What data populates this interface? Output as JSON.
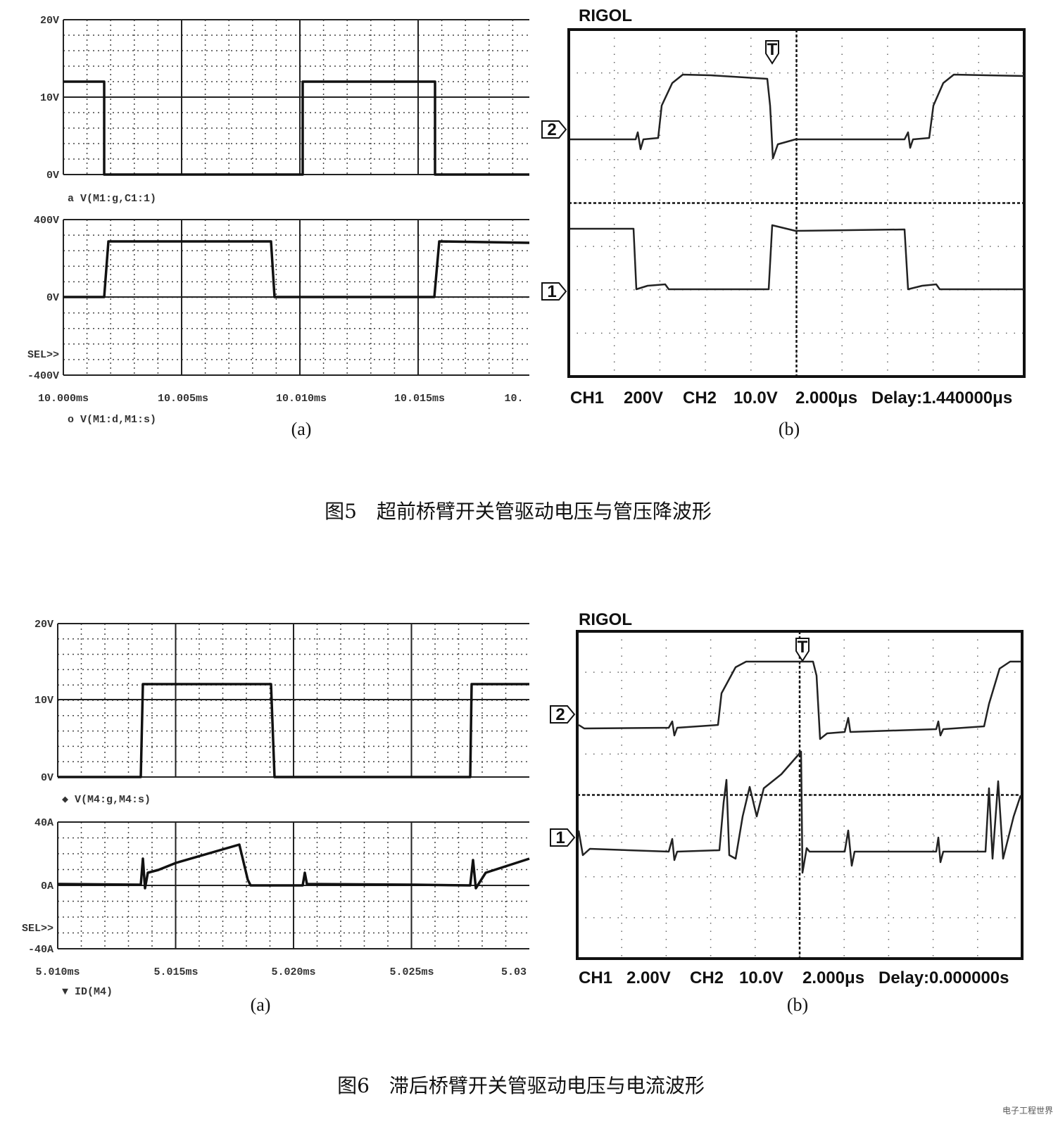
{
  "figure5": {
    "panel_a": {
      "top_plot": {
        "yticks": [
          "20V",
          "10V",
          "0V"
        ],
        "trace_label": "a V(M1:g,C1:1)"
      },
      "bottom_plot": {
        "yticks": [
          "400V",
          "0V",
          "SEL>>",
          "-400V"
        ],
        "trace_label": "o V(M1:d,M1:s)"
      },
      "xticks": [
        "10.000ms",
        "10.005ms",
        "10.010ms",
        "10.015ms",
        "10."
      ],
      "label": "(a)"
    },
    "panel_b": {
      "brand": "RIGOL",
      "markers": [
        "T",
        "2",
        "1"
      ],
      "status": [
        "CH1",
        "200V",
        "CH2",
        "10.0V",
        "2.000μs",
        "Delay:1.440000μs"
      ],
      "label": "(b)"
    },
    "caption": "图5　超前桥臂开关管驱动电压与管压降波形"
  },
  "figure6": {
    "panel_a": {
      "top_plot": {
        "yticks": [
          "20V",
          "10V",
          "0V"
        ],
        "trace_label": "◆ V(M4:g,M4:s)"
      },
      "bottom_plot": {
        "yticks": [
          "40A",
          "0A",
          "SEL>>",
          "-40A"
        ],
        "trace_label": "▼ ID(M4)"
      },
      "xticks": [
        "5.010ms",
        "5.015ms",
        "5.020ms",
        "5.025ms",
        "5.03"
      ],
      "label": "(a)"
    },
    "panel_b": {
      "brand": "RIGOL",
      "markers": [
        "T",
        "2",
        "1"
      ],
      "status": [
        "CH1",
        "2.00V",
        "CH2",
        "10.0V",
        "2.000μs",
        "Delay:0.000000s"
      ],
      "label": "(b)"
    },
    "caption": "图6　滞后桥臂开关管驱动电压与电流波形"
  },
  "watermark": "电子工程世界"
}
